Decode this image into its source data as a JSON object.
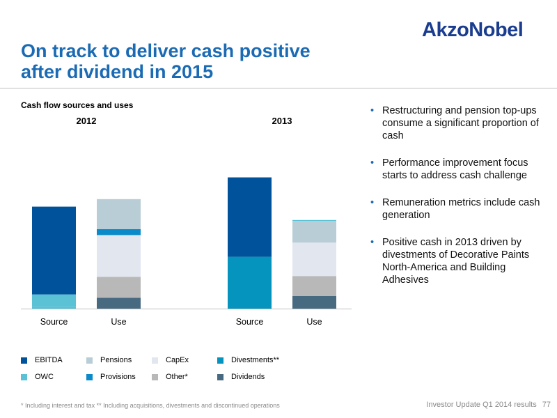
{
  "brand": {
    "logo": "AkzoNobel"
  },
  "header": {
    "title_lines": [
      "On track to deliver cash positive",
      "after dividend in 2015"
    ]
  },
  "colors": {
    "EBITDA": "#00539b",
    "OWC": "#5bc2d6",
    "Pensions": "#b9cdd6",
    "Provisions": "#0b8ac9",
    "CapEx": "#e1e6ef",
    "Other*": "#b8b8b8",
    "Divestments**": "#0594bd",
    "Dividends": "#486a80"
  },
  "chart_data": {
    "type": "bar",
    "stacked": true,
    "title": "Cash flow sources and uses",
    "groups": [
      "2012",
      "2013"
    ],
    "categories": [
      "Source",
      "Use"
    ],
    "ylim": [
      0,
      250
    ],
    "bars": [
      {
        "group": "2012",
        "category": "Source",
        "segments": [
          {
            "name": "OWC",
            "value": 3
          },
          {
            "name": "OWC",
            "value": 14
          },
          {
            "name": "EBITDA",
            "value": 105
          }
        ]
      },
      {
        "group": "2012",
        "category": "Use",
        "segments": [
          {
            "name": "Dividends",
            "value": 13
          },
          {
            "name": "Other*",
            "value": 25
          },
          {
            "name": "CapEx",
            "value": 50
          },
          {
            "name": "Provisions",
            "value": 7
          },
          {
            "name": "Pensions",
            "value": 36
          }
        ]
      },
      {
        "group": "2013",
        "category": "Source",
        "segments": [
          {
            "name": "Divestments**",
            "value": 62
          },
          {
            "name": "EBITDA",
            "value": 95
          }
        ]
      },
      {
        "group": "2013",
        "category": "Use",
        "segments": [
          {
            "name": "Dividends",
            "value": 15
          },
          {
            "name": "Other*",
            "value": 24
          },
          {
            "name": "CapEx",
            "value": 40
          },
          {
            "name": "Pensions",
            "value": 26
          },
          {
            "name": "OWC",
            "value": 1
          }
        ]
      }
    ],
    "legend": [
      "EBITDA",
      "Pensions",
      "CapEx",
      "Divestments**",
      "OWC",
      "Provisions",
      "Other*",
      "Dividends"
    ],
    "legend_position": "bottom"
  },
  "bullets": [
    "Restructuring and pension top-ups consume a significant proportion of cash",
    "Performance improvement focus starts to address cash challenge",
    "Remuneration metrics include cash generation",
    "Positive cash in 2013 driven by divestments of Decorative Paints North-America and Building Adhesives"
  ],
  "footnote": "* Including interest and tax   ** Including acquisitions, divestments and discontinued operations",
  "footer": {
    "label": "Investor Update Q1 2014 results",
    "page": "77"
  }
}
